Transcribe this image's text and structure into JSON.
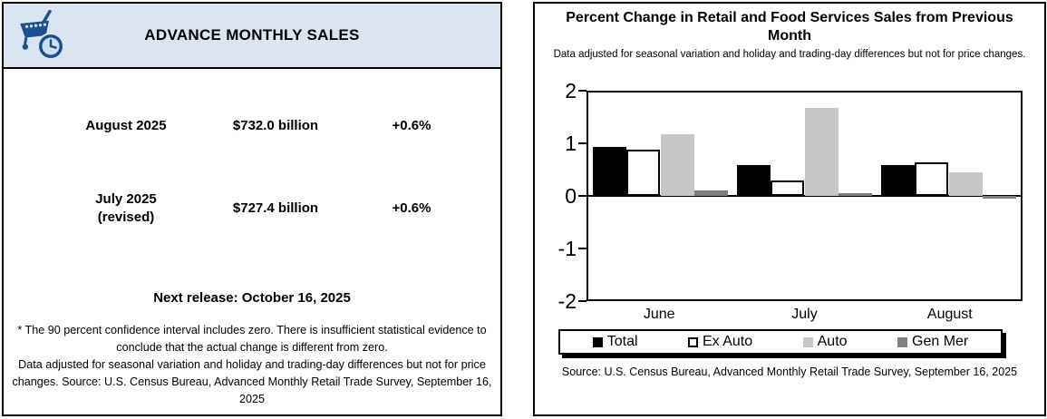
{
  "colors": {
    "header_bg": "#dbe5f1",
    "icon_blue": "#1d4f91"
  },
  "left_panel": {
    "title": "ADVANCE MONTHLY SALES",
    "icon": "cart-clock-icon",
    "rows": [
      {
        "period": "August 2025",
        "period_note": "",
        "value": "$732.0 billion",
        "change": "+0.6%"
      },
      {
        "period": "July 2025",
        "period_note": "(revised)",
        "value": "$727.4 billion",
        "change": "+0.6%"
      }
    ],
    "next_release": "Next release: October 16, 2025",
    "footnotes": [
      "* The 90 percent confidence interval includes zero. There is insufficient statistical evidence to conclude that the actual change is different from zero.",
      "Data adjusted for seasonal variation and holiday and trading-day differences but not for price changes. Source: U.S. Census Bureau, Advanced Monthly Retail Trade Survey, September 16, 2025"
    ]
  },
  "chart_data": {
    "type": "bar",
    "title": "Percent Change in Retail and Food Services Sales from Previous Month",
    "subtitle": "Data adjusted for seasonal variation and holiday and trading-day differences but not for price changes.",
    "categories": [
      "June",
      "July",
      "August"
    ],
    "series": [
      {
        "name": "Total",
        "color": "#000000",
        "values": [
          0.95,
          0.6,
          0.6
        ]
      },
      {
        "name": "Ex Auto",
        "color": "#ffffff",
        "outline": "#000000",
        "values": [
          0.9,
          0.3,
          0.65
        ]
      },
      {
        "name": "Auto",
        "color": "#c6c6c6",
        "values": [
          1.2,
          1.7,
          0.45
        ]
      },
      {
        "name": "Gen Mer",
        "color": "#808080",
        "values": [
          0.1,
          0.05,
          -0.05
        ]
      }
    ],
    "ylim": [
      -2,
      2
    ],
    "yticks": [
      2,
      1,
      0,
      -1,
      -2
    ],
    "grid": "zero-line-only",
    "legend_position": "bottom",
    "source": "Source: U.S. Census Bureau, Advanced Monthly Retail Trade Survey, September 16, 2025"
  }
}
